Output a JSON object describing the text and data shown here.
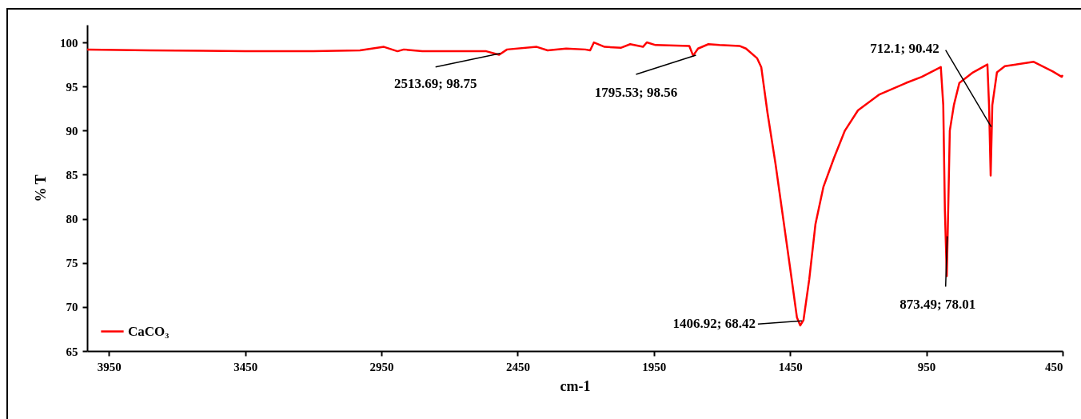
{
  "chart_data": {
    "type": "line",
    "xlabel": "cm-1",
    "ylabel": "% T",
    "xlim": [
      4030,
      450
    ],
    "xticks": [
      3950,
      3450,
      2950,
      2450,
      1950,
      1450,
      950,
      450
    ],
    "ylim": [
      65,
      102
    ],
    "yticks": [
      65,
      70,
      75,
      80,
      85,
      90,
      95,
      100
    ],
    "grid": false,
    "legend": "bottom left",
    "line_style": "solid",
    "marker": "none",
    "x": [
      4030,
      3800,
      3450,
      3200,
      3029,
      2941,
      2891,
      2868,
      2800,
      2700,
      2565,
      2518,
      2489,
      2380,
      2340,
      2272,
      2202,
      2184,
      2170,
      2131,
      2070,
      2037,
      1990,
      1976,
      1944,
      1820,
      1806,
      1788,
      1750,
      1709,
      1636,
      1612,
      1571,
      1556,
      1533,
      1504,
      1474,
      1445,
      1425,
      1413,
      1401,
      1380,
      1357,
      1328,
      1289,
      1249,
      1201,
      1122,
      1025,
      967,
      897,
      888,
      882,
      875,
      870,
      864,
      849,
      829,
      779,
      726,
      720,
      714,
      708,
      691,
      662,
      556,
      486,
      453,
      450
    ],
    "series": [
      {
        "name": "CaCO₃",
        "color": "#ff0000",
        "values": [
          99.2,
          99.1,
          99.0,
          99.0,
          99.1,
          99.5,
          99.0,
          99.2,
          99.0,
          99.0,
          99.0,
          98.6,
          99.2,
          99.5,
          99.1,
          99.3,
          99.2,
          99.1,
          100.0,
          99.5,
          99.4,
          99.8,
          99.5,
          100.0,
          99.7,
          99.6,
          98.5,
          99.3,
          99.8,
          99.7,
          99.6,
          99.3,
          98.2,
          97.2,
          92.0,
          86.3,
          79.7,
          73.3,
          68.8,
          67.9,
          68.5,
          73.1,
          79.4,
          83.6,
          86.9,
          90.0,
          92.3,
          94.1,
          95.4,
          96.1,
          97.2,
          92.9,
          80.9,
          73.5,
          80.9,
          90.0,
          92.9,
          95.4,
          96.6,
          97.5,
          92.9,
          84.9,
          92.9,
          96.6,
          97.3,
          97.8,
          96.7,
          96.1,
          96.3
        ]
      }
    ],
    "annotations": [
      {
        "text": "2513.69; 98.75",
        "x": 2513.69,
        "y": 98.75
      },
      {
        "text": "1795.53; 98.56",
        "x": 1795.53,
        "y": 98.56
      },
      {
        "text": "1406.92; 68.42",
        "x": 1406.92,
        "y": 68.42
      },
      {
        "text": "873.49; 78.01",
        "x": 873.49,
        "y": 78.01
      },
      {
        "text": "712.1; 90.42",
        "x": 712.1,
        "y": 90.42
      }
    ]
  }
}
